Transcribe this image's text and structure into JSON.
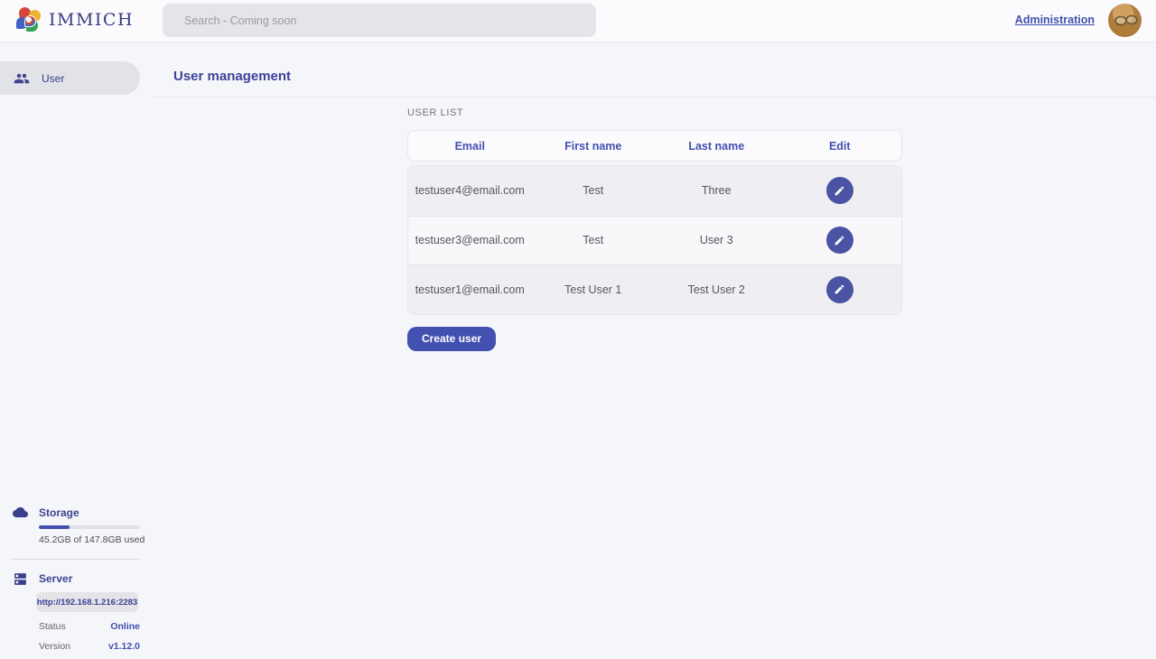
{
  "app": {
    "name": "IMMICH",
    "colors": {
      "accent": "#4250af",
      "edit_button": "#4a53a4",
      "sidebar_pill": "#e2e3e9",
      "search_bg": "#e4e4e9"
    }
  },
  "header": {
    "search_placeholder": "Search - Coming soon",
    "admin_link": "Administration"
  },
  "sidebar": {
    "items": [
      {
        "label": "User",
        "icon": "users-icon",
        "active": true
      }
    ],
    "storage": {
      "title": "Storage",
      "usage_text": "45.2GB of 147.8GB used",
      "percent_used": 30.6
    },
    "server": {
      "title": "Server",
      "url": "http://192.168.1.216:2283",
      "status_label": "Status",
      "status_value": "Online",
      "version_label": "Version",
      "version_value": "v1.12.0"
    }
  },
  "main": {
    "title": "User management",
    "section_label": "USER LIST",
    "table": {
      "columns": [
        "Email",
        "First name",
        "Last name",
        "Edit"
      ],
      "rows": [
        {
          "email": "testuser4@email.com",
          "first_name": "Test",
          "last_name": "Three"
        },
        {
          "email": "testuser3@email.com",
          "first_name": "Test",
          "last_name": "User 3"
        },
        {
          "email": "testuser1@email.com",
          "first_name": "Test User 1",
          "last_name": "Test User 2"
        }
      ]
    },
    "create_button": "Create user"
  }
}
